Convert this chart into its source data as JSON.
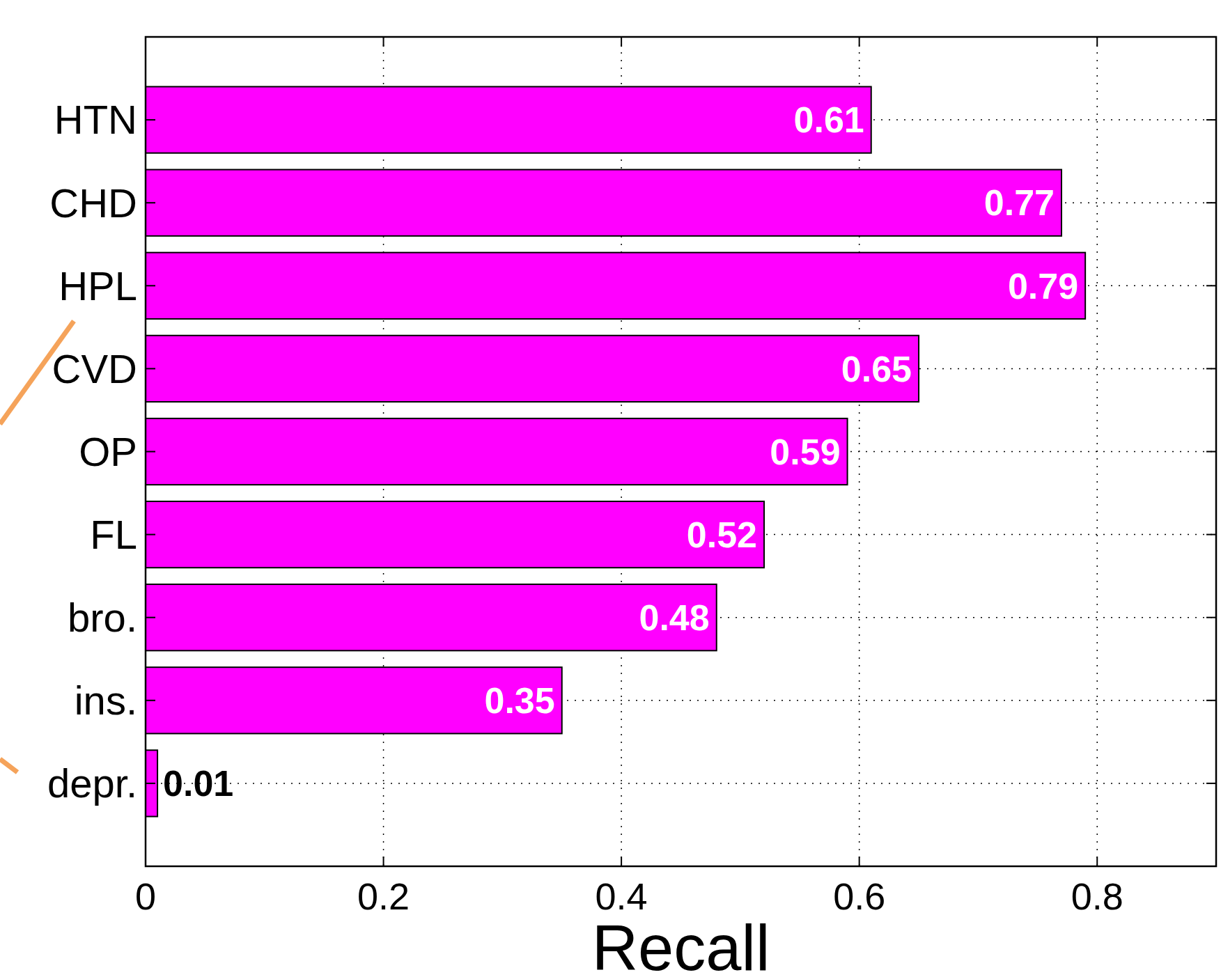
{
  "chart_data": {
    "type": "bar",
    "orientation": "horizontal",
    "xlabel": "Recall",
    "categories": [
      "HTN",
      "CHD",
      "HPL",
      "CVD",
      "OP",
      "FL",
      "bro.",
      "ins.",
      "depr."
    ],
    "values": [
      0.61,
      0.77,
      0.79,
      0.65,
      0.59,
      0.52,
      0.48,
      0.35,
      0.01
    ],
    "color": "#ff00ff",
    "xlim": [
      0,
      0.9
    ],
    "xticks": [
      0,
      0.2,
      0.4,
      0.6,
      0.8
    ],
    "grid": true,
    "data_labels": true
  }
}
